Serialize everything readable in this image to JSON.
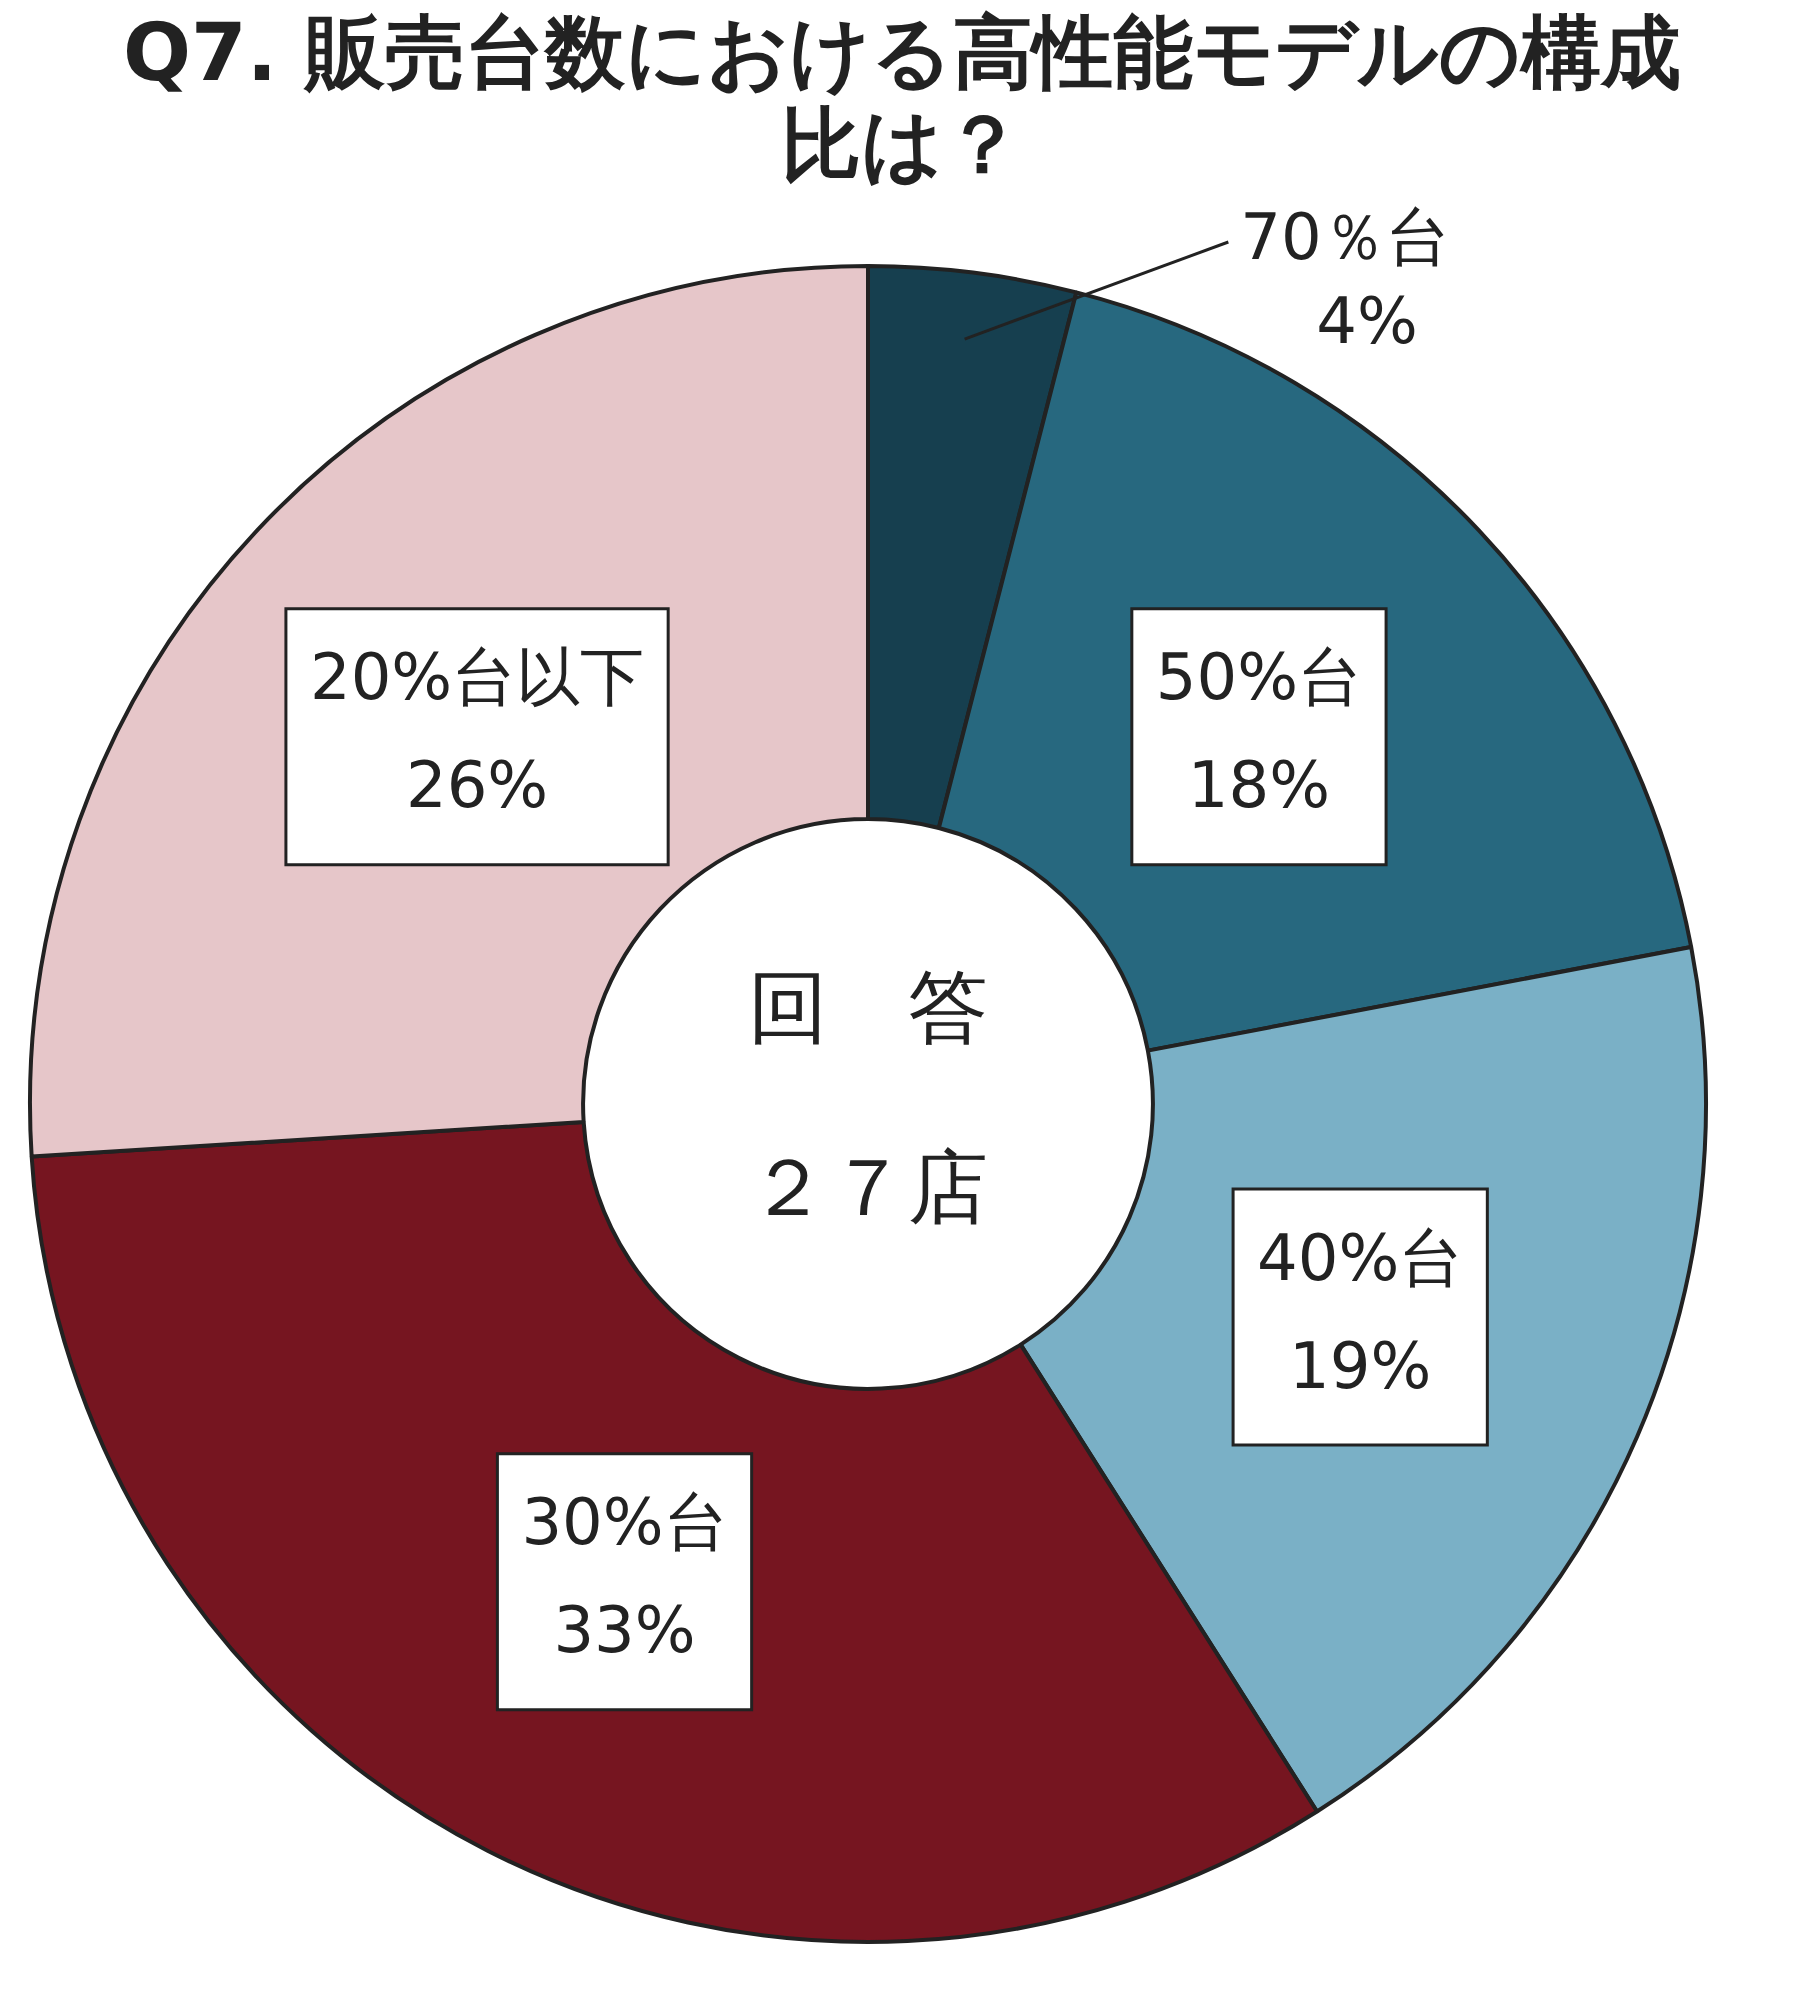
{
  "chart_data": {
    "type": "donut",
    "title": "Q7. 販売台数における高性能モデルの構成比は？",
    "categories": [
      "70％台",
      "50%台",
      "40%台",
      "30%台",
      "20%台以下"
    ],
    "values": [
      4,
      18,
      19,
      33,
      26
    ],
    "value_labels": [
      "4%",
      "18%",
      "19%",
      "33%",
      "26%"
    ],
    "colors": [
      "#163f4f",
      "#27687f",
      "#7ab0c6",
      "#761520",
      "#e6c6c9"
    ],
    "annotations": [
      "回　答",
      "２７店"
    ],
    "legend": false
  }
}
